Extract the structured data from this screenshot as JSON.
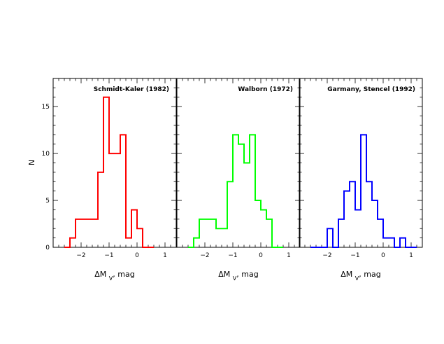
{
  "chart_data": {
    "y_label": "N",
    "x_label": "ΔM",
    "x_label_sub": "V",
    "x_label_unit": ", mag",
    "panels": [
      {
        "type": "histogram",
        "title": "Schmidt-Kaler (1982)",
        "color": "#ff0000",
        "xlim": [
          -3.0,
          1.4
        ],
        "ylim": [
          0,
          18
        ],
        "xticks": [
          -2,
          -1,
          0,
          1
        ],
        "yticks": [
          0,
          5,
          10,
          15
        ],
        "bin_edges": [
          -2.6,
          -2.4,
          -2.2,
          -1.8,
          -1.6,
          -1.4,
          -1.2,
          -1.0,
          -0.8,
          -0.6,
          -0.4,
          -0.2,
          0.0,
          0.2,
          0.4,
          0.6
        ],
        "values": [
          0,
          1,
          3,
          3,
          3,
          8,
          16,
          10,
          10,
          12,
          1,
          4,
          2,
          0,
          0
        ]
      },
      {
        "type": "histogram",
        "title": "Walborn (1972)",
        "color": "#00ff00",
        "xlim": [
          -3.0,
          1.4
        ],
        "ylim": [
          0,
          18
        ],
        "xticks": [
          -2,
          -1,
          0,
          1
        ],
        "yticks": [
          0,
          5,
          10,
          15
        ],
        "bin_edges": [
          -2.6,
          -2.4,
          -2.2,
          -1.8,
          -1.6,
          -1.4,
          -1.2,
          -1.0,
          -0.8,
          -0.6,
          -0.4,
          -0.2,
          0.0,
          0.2,
          0.4,
          0.6,
          0.8
        ],
        "values": [
          0,
          1,
          3,
          3,
          2,
          2,
          7,
          12,
          11,
          9,
          12,
          5,
          4,
          3,
          0,
          0
        ]
      },
      {
        "type": "histogram",
        "title": "Garmany, Stencel (1992)",
        "color": "#0000ff",
        "xlim": [
          -3.0,
          1.4
        ],
        "ylim": [
          0,
          18
        ],
        "xticks": [
          -2,
          -1,
          0,
          1
        ],
        "yticks": [
          0,
          5,
          10,
          15
        ],
        "bin_edges": [
          -2.6,
          -2.4,
          -2.2,
          -2.0,
          -1.8,
          -1.6,
          -1.4,
          -1.2,
          -1.0,
          -0.8,
          -0.6,
          -0.4,
          -0.2,
          0.0,
          0.2,
          0.4,
          0.6,
          0.8,
          1.0,
          1.2
        ],
        "values": [
          0,
          0,
          0,
          2,
          0,
          3,
          6,
          7,
          4,
          12,
          7,
          5,
          3,
          1,
          1,
          0,
          1,
          0,
          0
        ]
      }
    ]
  }
}
